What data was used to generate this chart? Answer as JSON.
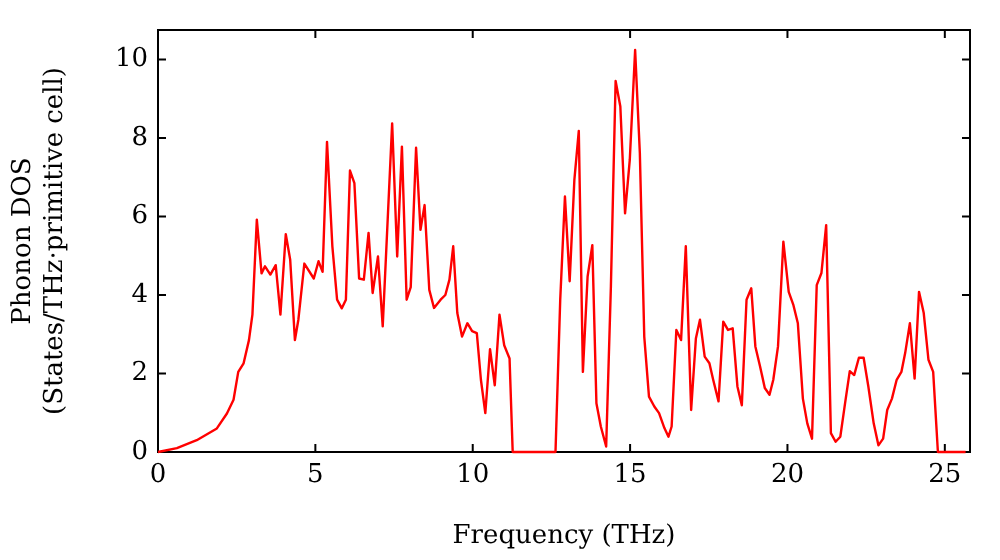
{
  "chart_data": {
    "type": "line",
    "xlabel": "Frequency (THz)",
    "ylabel": "Phonon DOS\n(States/THz·primitive cell)",
    "xlim": [
      0,
      25.8
    ],
    "ylim": [
      0,
      10.75
    ],
    "xticks": [
      0,
      5,
      10,
      15,
      20,
      25
    ],
    "yticks": [
      0,
      2,
      4,
      6,
      8,
      10
    ],
    "grid": false,
    "legend": false,
    "marker": "none",
    "line_style": "solid",
    "series": [
      {
        "color": "#ff0000",
        "x": [
          0,
          0.6,
          1.23,
          1.87,
          2.19,
          2.4,
          2.55,
          2.72,
          2.89,
          3.0,
          3.14,
          3.29,
          3.4,
          3.57,
          3.74,
          3.89,
          4.06,
          4.2,
          4.35,
          4.46,
          4.65,
          4.95,
          5.1,
          5.23,
          5.37,
          5.54,
          5.69,
          5.84,
          5.97,
          6.1,
          6.24,
          6.39,
          6.54,
          6.69,
          6.82,
          6.99,
          7.14,
          7.44,
          7.6,
          7.75,
          7.9,
          8.03,
          8.2,
          8.34,
          8.47,
          8.62,
          8.77,
          8.98,
          9.13,
          9.26,
          9.38,
          9.51,
          9.66,
          9.83,
          9.98,
          10.13,
          10.26,
          10.4,
          10.55,
          10.7,
          10.85,
          11.0,
          11.17,
          11.27,
          12.63,
          12.78,
          12.93,
          13.08,
          13.23,
          13.37,
          13.5,
          13.65,
          13.8,
          13.93,
          14.07,
          14.24,
          14.39,
          14.54,
          14.69,
          14.84,
          14.99,
          15.16,
          15.31,
          15.45,
          15.6,
          15.77,
          15.92,
          16.09,
          16.22,
          16.32,
          16.47,
          16.62,
          16.77,
          16.94,
          17.09,
          17.22,
          17.37,
          17.52,
          17.64,
          17.81,
          17.96,
          18.11,
          18.26,
          18.41,
          18.55,
          18.7,
          18.85,
          18.98,
          19.13,
          19.28,
          19.43,
          19.55,
          19.7,
          19.87,
          20.04,
          20.19,
          20.33,
          20.49,
          20.63,
          20.78,
          20.93,
          21.08,
          21.23,
          21.38,
          21.53,
          21.68,
          21.83,
          21.98,
          22.12,
          22.27,
          22.42,
          22.57,
          22.74,
          22.89,
          23.04,
          23.17,
          23.32,
          23.47,
          23.62,
          23.74,
          23.89,
          24.04,
          24.18,
          24.33,
          24.48,
          24.63,
          24.78,
          25.66
        ],
        "values": [
          0,
          0.1,
          0.3,
          0.6,
          0.98,
          1.33,
          2.04,
          2.26,
          2.85,
          3.5,
          5.92,
          4.55,
          4.73,
          4.52,
          4.76,
          3.5,
          5.55,
          4.9,
          2.85,
          3.37,
          4.8,
          4.42,
          4.86,
          4.59,
          7.9,
          5.24,
          3.88,
          3.66,
          3.88,
          7.17,
          6.85,
          4.42,
          4.39,
          5.58,
          4.05,
          4.98,
          3.2,
          8.37,
          4.98,
          7.78,
          3.88,
          4.2,
          7.75,
          5.66,
          6.29,
          4.13,
          3.67,
          3.88,
          4.0,
          4.39,
          5.24,
          3.54,
          2.94,
          3.28,
          3.08,
          3.03,
          1.84,
          0.99,
          2.62,
          1.7,
          3.5,
          2.72,
          2.38,
          0,
          0,
          3.88,
          6.51,
          4.35,
          6.94,
          8.18,
          2.04,
          4.47,
          5.27,
          1.24,
          0.65,
          0.14,
          4.22,
          9.45,
          8.8,
          6.08,
          7.44,
          10.24,
          7.61,
          2.94,
          1.41,
          1.16,
          0.99,
          0.61,
          0.39,
          0.65,
          3.11,
          2.85,
          5.24,
          1.07,
          2.89,
          3.37,
          2.43,
          2.26,
          1.84,
          1.29,
          3.32,
          3.11,
          3.15,
          1.67,
          1.19,
          3.88,
          4.17,
          2.69,
          2.18,
          1.63,
          1.46,
          1.84,
          2.69,
          5.36,
          4.08,
          3.74,
          3.28,
          1.36,
          0.73,
          0.34,
          4.25,
          4.56,
          5.78,
          0.48,
          0.26,
          0.39,
          1.24,
          2.06,
          1.96,
          2.4,
          2.4,
          1.67,
          0.73,
          0.17,
          0.34,
          1.07,
          1.36,
          1.84,
          2.04,
          2.52,
          3.28,
          1.87,
          4.08,
          3.54,
          2.35,
          2.04,
          0,
          0
        ]
      }
    ]
  }
}
